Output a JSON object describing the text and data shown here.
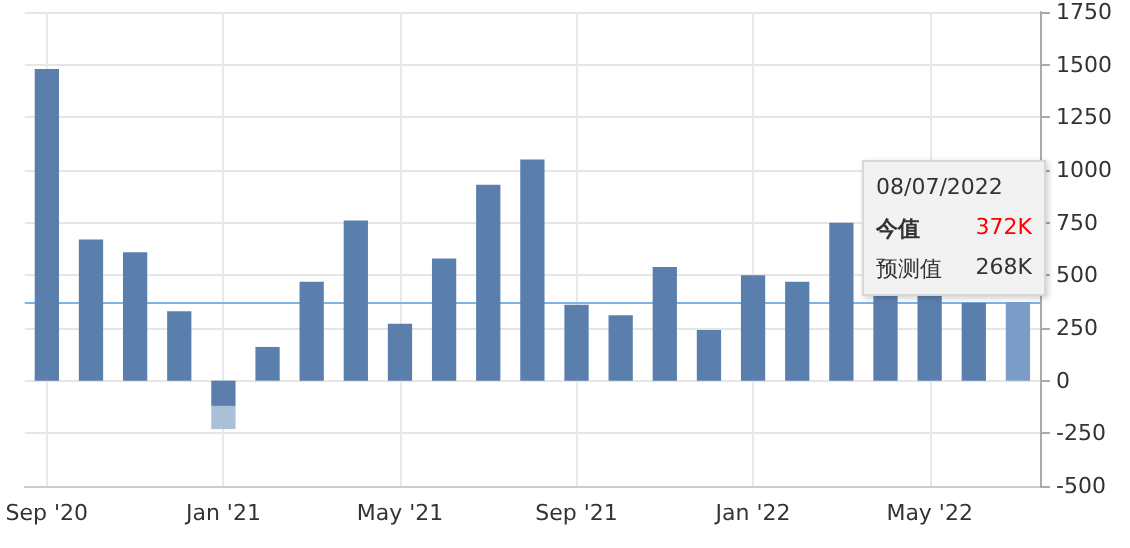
{
  "chart_data": {
    "type": "bar",
    "stacked": true,
    "categories": [
      "Sep '20",
      null,
      null,
      null,
      "Jan '21",
      null,
      null,
      null,
      "May '21",
      null,
      null,
      null,
      "Sep '21",
      null,
      null,
      null,
      "Jan '22",
      null,
      null,
      null,
      "May '22",
      null,
      null
    ],
    "series": [
      {
        "color": "#5b7fad",
        "values": [
          1480,
          670,
          610,
          330,
          -120,
          160,
          470,
          760,
          270,
          580,
          930,
          1050,
          360,
          310,
          540,
          240,
          500,
          470,
          750,
          420,
          420,
          370,
          null
        ]
      },
      {
        "color": "#aabfd8",
        "values": [
          null,
          null,
          null,
          null,
          -110,
          null,
          null,
          null,
          null,
          null,
          null,
          null,
          null,
          null,
          null,
          null,
          null,
          null,
          null,
          null,
          null,
          null,
          null
        ]
      },
      {
        "color": "#7a9cc6",
        "values": [
          null,
          null,
          null,
          null,
          null,
          null,
          null,
          null,
          null,
          null,
          null,
          null,
          null,
          null,
          null,
          null,
          null,
          null,
          null,
          null,
          null,
          null,
          372
        ]
      }
    ],
    "ylim": [
      -500,
      1750
    ],
    "yticks": [
      -500,
      -250,
      0,
      250,
      500,
      750,
      1000,
      1250,
      1500,
      1750
    ],
    "ref_lines": [
      {
        "axis": "y",
        "value": 372,
        "color": "#7fb2e5"
      }
    ],
    "annotations": [
      "08/07/2022",
      "今值",
      "372K",
      "预测值",
      "268K"
    ],
    "grid": true
  }
}
